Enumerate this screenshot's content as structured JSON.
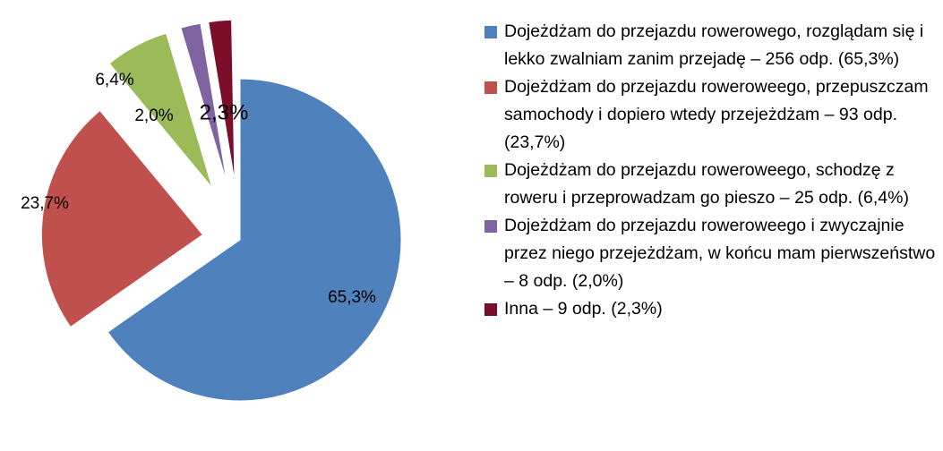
{
  "chart_data": {
    "type": "pie",
    "categories": [
      "Dojeżdżam do przejazdu rowerowego, rozglądam się i lekko zwalniam zanim przejadę – 256 odp. (65,3%)",
      "Dojeżdżam do przejazdu roweroweego, przepuszczam samochody i dopiero wtedy przejeżdżam – 93 odp. (23,7%)",
      "Dojeżdżam do przejazdu roweroweego, schodzę z roweru i przeprowadzam go pieszo – 25 odp. (6,4%)",
      "Dojeżdżam do przejazdu roweroweego i zwyczajnie przez niego przejeżdżam, w końcu mam pierwszeństwo – 8 odp. (2,0%)",
      "Inna – 9 odp. (2,3%)"
    ],
    "values": [
      65.3,
      23.7,
      6.4,
      2.0,
      2.3
    ],
    "value_labels": [
      "65,3%",
      "23,7%",
      "6,4%",
      "2,0%",
      "2,3%"
    ],
    "colors": [
      "#4f81bd",
      "#c0504d",
      "#9bbb59",
      "#8064a2",
      "#7b0f2a"
    ],
    "legend": "right"
  }
}
